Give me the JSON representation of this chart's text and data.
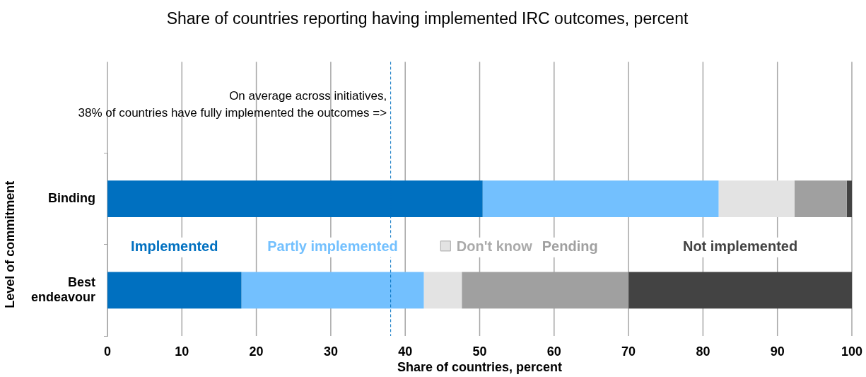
{
  "chart_data": {
    "type": "bar",
    "orientation": "horizontal",
    "stacked": true,
    "title": "Share of countries reporting having implemented IRC outcomes, percent",
    "xlabel": "Share of countries, percent",
    "ylabel": "Level of commitment",
    "categories": [
      "Binding",
      "Best endeavour"
    ],
    "series": [
      {
        "name": "Implemented",
        "color": "#0070c0",
        "values": [
          50.4,
          18.0
        ]
      },
      {
        "name": "Partly implemented",
        "color": "#73c0fe",
        "values": [
          31.7,
          24.5
        ]
      },
      {
        "name": "Don't know",
        "color": "#e3e3e3",
        "values": [
          10.2,
          5.1
        ]
      },
      {
        "name": "Pending",
        "color": "#a0a0a0",
        "values": [
          7.0,
          22.4
        ]
      },
      {
        "name": "Not implemented",
        "color": "#434343",
        "values": [
          0.7,
          30.0
        ]
      }
    ],
    "xlim": [
      0,
      100
    ],
    "xticks": [
      0,
      10,
      20,
      30,
      40,
      50,
      60,
      70,
      80,
      90,
      100
    ],
    "grid": "x",
    "legend": "center",
    "ref_lines": [
      {
        "axis": "x",
        "value": 38,
        "label": "On average across initiatives,\n38% of countries have fully implemented the outcomes =>",
        "color": "#0070c0",
        "line_style": "dashed"
      }
    ]
  }
}
